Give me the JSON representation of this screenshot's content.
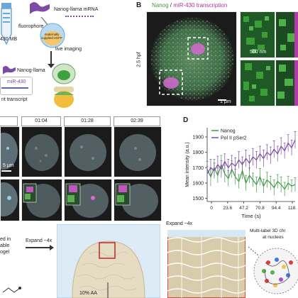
{
  "panel_a": {
    "mrna_label": "Nanog-llama mRNA",
    "fluorophore_label": "fluorophore",
    "mb_label": "430 MB",
    "egg_label": "maternally supplied eGFP",
    "arrow_label": "live imaging",
    "protein_label": "Nanog-llama",
    "mir_label": "miR-430",
    "transcript_label": "nt transcript"
  },
  "panel_b": {
    "letter": "B",
    "title_nanog": "Nanog",
    "title_sep": " / ",
    "title_mir": "miR-430 transcription",
    "stage": "2.5 hpf",
    "scale_main": "1 μm",
    "scale_zoom": "500 nm"
  },
  "panel_c": {
    "times": [
      "01:04",
      "01:28",
      "02:39"
    ],
    "scale": "5 μm"
  },
  "panel_d": {
    "letter": "D",
    "ylabel": "Mean intensity (a.u.)",
    "xlabel": "Time (s)"
  },
  "panel_e": {
    "expand1": "Expand ~4x",
    "expand2": "Expand ~4x",
    "text_left1": "ed in",
    "text_left2": "able",
    "text_left3": "ogel",
    "percent": "10% AA",
    "multilabel1": "Multi-label 3D chr",
    "multilabel2": "at nucleos"
  },
  "chart_data": {
    "type": "line",
    "title": "",
    "xlabel": "Time (s)",
    "ylabel": "Mean intensity (a.u.)",
    "x_ticks": [
      "0",
      "23.6",
      "47.2",
      "70.8",
      "94.4",
      "118."
    ],
    "y_ticks": [
      1500,
      1600,
      1700,
      1800,
      1900
    ],
    "ylim": [
      1480,
      1960
    ],
    "xlim": [
      0,
      125
    ],
    "legend": [
      "Nanog",
      "Pol II pSer2"
    ],
    "colors": {
      "Nanog": "#3f9a45",
      "Pol II pSer2": "#7d4aa6"
    },
    "series": [
      {
        "name": "Nanog",
        "x": [
          0,
          5,
          10,
          15,
          20,
          25,
          30,
          35,
          40,
          45,
          50,
          55,
          60,
          65,
          70,
          75,
          80,
          85,
          90,
          95,
          100,
          105,
          110,
          115,
          120,
          125
        ],
        "y": [
          1690,
          1640,
          1700,
          1650,
          1720,
          1660,
          1630,
          1690,
          1640,
          1610,
          1680,
          1600,
          1650,
          1620,
          1590,
          1640,
          1580,
          1620,
          1600,
          1570,
          1610,
          1590,
          1560,
          1600,
          1580,
          1590
        ],
        "err": [
          50,
          60,
          55,
          50,
          60,
          55,
          50,
          55,
          50,
          45,
          55,
          50,
          50,
          45,
          50,
          55,
          45,
          50,
          45,
          50,
          45,
          50,
          45,
          45,
          40,
          45
        ]
      },
      {
        "name": "Pol II pSer2",
        "x": [
          0,
          5,
          10,
          15,
          20,
          25,
          30,
          35,
          40,
          45,
          50,
          55,
          60,
          65,
          70,
          75,
          80,
          85,
          90,
          95,
          100,
          105,
          110,
          115,
          120,
          125
        ],
        "y": [
          1660,
          1700,
          1680,
          1720,
          1690,
          1740,
          1700,
          1730,
          1710,
          1750,
          1720,
          1760,
          1730,
          1770,
          1750,
          1790,
          1760,
          1800,
          1780,
          1820,
          1790,
          1840,
          1810,
          1860,
          1830,
          1880
        ],
        "err": [
          50,
          55,
          50,
          55,
          55,
          50,
          55,
          50,
          55,
          55,
          50,
          55,
          50,
          55,
          55,
          50,
          55,
          50,
          55,
          55,
          50,
          55,
          50,
          55,
          50,
          55
        ]
      }
    ]
  }
}
